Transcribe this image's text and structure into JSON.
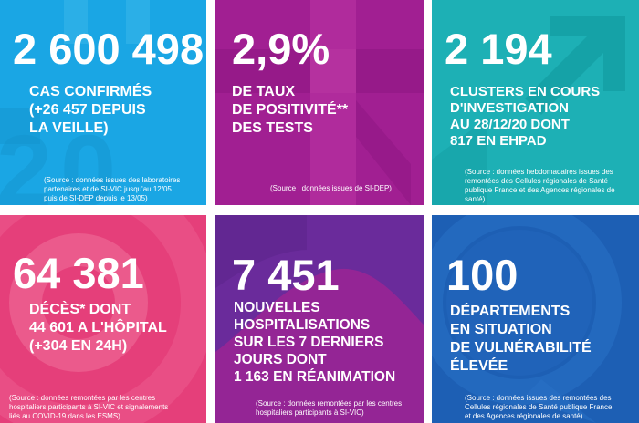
{
  "tiles": [
    {
      "value": "2 600 498",
      "label": "CAS CONFIRMÉS\n(+26 457 DEPUIS\nLA VEILLE)",
      "source": "(Source : données issues des laboratoires\npartenaires et de SI-VIC jusqu'au 12/05\npuis de SI-DEP depuis le 13/05)"
    },
    {
      "value": "2,9%",
      "label": "DE TAUX\nDE POSITIVITÉ**\nDES TESTS",
      "source": "(Source : données issues de SI-DEP)"
    },
    {
      "value": "2 194",
      "label": "CLUSTERS EN COURS\nD'INVESTIGATION\nAU 28/12/20 DONT\n817 EN EHPAD",
      "source": "(Source : données hebdomadaires issues des\nremontées des Cellules régionales de Santé\npublique France et des Agences régionales de\nsanté)"
    },
    {
      "value": "64 381",
      "label": "DÉCÈS* DONT\n44 601 A L'HÔPITAL\n(+304 EN 24H)",
      "source": "(Source : données remontées par les centres\nhospitaliers participants à SI-VIC et signalements\nliés au COVID-19 dans les ESMS)"
    },
    {
      "value": "7 451",
      "label": "NOUVELLES\nHOSPITALISATIONS\nSUR LES 7 DERNIERS\nJOURS DONT\n1 163 EN RÉANIMATION",
      "source": "(Source : données remontées par les centres\nhospitaliers participants à SI-VIC)"
    },
    {
      "value": "100",
      "label": "DÉPARTEMENTS\nEN SITUATION\nDE VULNÉRABILITÉ\nÉLEVÉE",
      "source": "(Source : données issues des remontées des\nCellules régionales de Santé publique France\net des Agences régionales de santé)"
    }
  ],
  "colors": {
    "tile1": "#1aa6e4",
    "tile2": "#a11f92",
    "tile3": "#1db0b5",
    "tile4": "#e53f7a",
    "tile5": "#6a2b9b",
    "tile6": "#1d5fb4"
  }
}
